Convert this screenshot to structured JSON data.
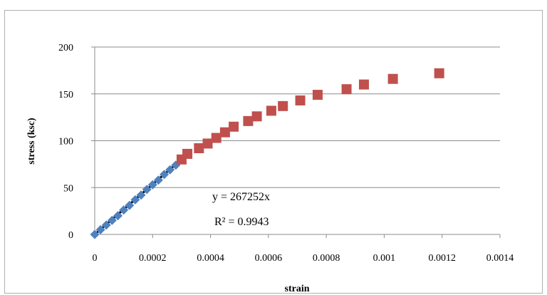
{
  "chart_data": {
    "type": "scatter",
    "xlabel": "strain",
    "ylabel": "stress (ksc)",
    "xlim": [
      0,
      0.0014
    ],
    "ylim": [
      0,
      200
    ],
    "xticks": [
      0,
      0.0002,
      0.0004,
      0.0006,
      0.0008,
      0.001,
      0.0012,
      0.0014
    ],
    "xtick_labels": [
      "0",
      "0.0002",
      "0.0004",
      "0.0006",
      "0.0008",
      "0.001",
      "0.0012",
      "0.0014"
    ],
    "yticks": [
      0,
      50,
      100,
      150,
      200
    ],
    "ytick_labels": [
      "0",
      "50",
      "100",
      "150",
      "200"
    ],
    "grid": "horizontal",
    "legend": "none",
    "series": [
      {
        "marker": "diamond",
        "color": "#4f81bd",
        "points": [
          [
            0,
            0
          ],
          [
            2e-05,
            5
          ],
          [
            4e-05,
            10
          ],
          [
            6e-05,
            15
          ],
          [
            8e-05,
            20
          ],
          [
            0.0001,
            26
          ],
          [
            0.00012,
            31
          ],
          [
            0.00014,
            37
          ],
          [
            0.00016,
            42
          ],
          [
            0.00018,
            48
          ],
          [
            0.0002,
            53
          ],
          [
            0.00022,
            58
          ],
          [
            0.00024,
            64
          ],
          [
            0.00026,
            69
          ],
          [
            0.00028,
            74
          ]
        ]
      },
      {
        "marker": "square",
        "color": "#c0504d",
        "points": [
          [
            0.0003,
            80
          ],
          [
            0.00032,
            86
          ],
          [
            0.00036,
            92
          ],
          [
            0.00039,
            97
          ],
          [
            0.00042,
            103
          ],
          [
            0.00045,
            109
          ],
          [
            0.00048,
            115
          ],
          [
            0.00053,
            121
          ],
          [
            0.00056,
            126
          ],
          [
            0.00061,
            132
          ],
          [
            0.00065,
            137
          ],
          [
            0.00071,
            143
          ],
          [
            0.00077,
            149
          ],
          [
            0.00087,
            155
          ],
          [
            0.00093,
            160
          ],
          [
            0.00103,
            166
          ],
          [
            0.00119,
            172
          ]
        ]
      }
    ],
    "trendline": {
      "slope": 267252,
      "x_range": [
        0,
        0.0003
      ],
      "color": "#000000"
    },
    "annotations": {
      "equation": "y = 267252x",
      "r_squared": "R² = 0.9943"
    }
  }
}
